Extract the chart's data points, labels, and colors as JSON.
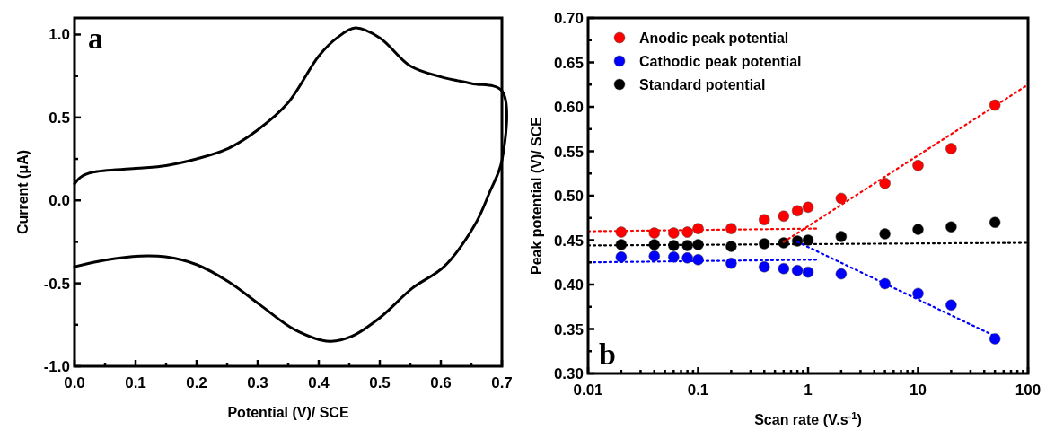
{
  "chart_data": [
    {
      "type": "line",
      "xlabel": "Potential (V)/ SCE",
      "ylabel": "Current (μA)",
      "annotations": [
        "a"
      ],
      "xlim": [
        0,
        0.7
      ],
      "ylim": [
        -1.0,
        1.1
      ],
      "xticks": [
        {
          "value": 0,
          "label": "0.0"
        },
        {
          "value": 0.05,
          "label": null
        },
        {
          "value": 0.1,
          "label": "0.1"
        },
        {
          "value": 0.15,
          "label": null
        },
        {
          "value": 0.2,
          "label": "0.2"
        },
        {
          "value": 0.25,
          "label": null
        },
        {
          "value": 0.3,
          "label": "0.3"
        },
        {
          "value": 0.35,
          "label": null
        },
        {
          "value": 0.4,
          "label": "0.4"
        },
        {
          "value": 0.45,
          "label": null
        },
        {
          "value": 0.5,
          "label": "0.5"
        },
        {
          "value": 0.55,
          "label": null
        },
        {
          "value": 0.6,
          "label": "0.6"
        },
        {
          "value": 0.65,
          "label": null
        },
        {
          "value": 0.7,
          "label": "0.7"
        }
      ],
      "yticks": [
        {
          "value": -1.0,
          "label": "-1.0"
        },
        {
          "value": -0.75,
          "label": null
        },
        {
          "value": -0.5,
          "label": "-0.5"
        },
        {
          "value": -0.25,
          "label": null
        },
        {
          "value": 0,
          "label": "0.0"
        },
        {
          "value": 0.25,
          "label": null
        },
        {
          "value": 0.5,
          "label": "0.5"
        },
        {
          "value": 0.75,
          "label": null
        },
        {
          "value": 1.0,
          "label": "1.0"
        }
      ],
      "grid": false,
      "legend": false,
      "line_style": "solid",
      "series": [
        {
          "color": "#000000",
          "x": [
            0,
            0.01,
            0.03,
            0.1,
            0.15,
            0.2,
            0.25,
            0.3,
            0.35,
            0.4,
            0.43,
            0.46,
            0.5,
            0.55,
            0.6,
            0.65,
            0.7,
            0.7,
            0.68,
            0.656,
            0.605,
            0.553,
            0.501,
            0.454,
            0.418,
            0.361,
            0.304,
            0.252,
            0.2,
            0.149,
            0.107,
            0.05,
            0
          ],
          "values": [
            0.1,
            0.14,
            0.17,
            0.193,
            0.21,
            0.25,
            0.31,
            0.425,
            0.59,
            0.87,
            0.98,
            1.04,
            0.98,
            0.81,
            0.745,
            0.705,
            0.66,
            0.24,
            0.05,
            -0.145,
            -0.4,
            -0.53,
            -0.705,
            -0.82,
            -0.85,
            -0.78,
            -0.63,
            -0.49,
            -0.387,
            -0.34,
            -0.335,
            -0.36,
            -0.4
          ]
        }
      ]
    },
    {
      "type": "scatter",
      "xlabel": "Scan rate (V.s$^{-1}$)",
      "ylabel": "Peak potential (V)/ SCE",
      "annotations": [
        "b"
      ],
      "log": "x",
      "xlim": [
        0.01,
        100
      ],
      "ylim": [
        0.3,
        0.7
      ],
      "xticks": [
        0.01,
        {
          "value": 0.02,
          "label": null
        },
        {
          "value": 0.03,
          "label": null
        },
        {
          "value": 0.04,
          "label": null
        },
        {
          "value": 0.05,
          "label": null
        },
        {
          "value": 0.06,
          "label": null
        },
        {
          "value": 0.07,
          "label": null
        },
        {
          "value": 0.08,
          "label": null
        },
        {
          "value": 0.09,
          "label": null
        },
        0.1,
        {
          "value": 0.2,
          "label": null
        },
        {
          "value": 0.3,
          "label": null
        },
        {
          "value": 0.4,
          "label": null
        },
        {
          "value": 0.5,
          "label": null
        },
        {
          "value": 0.6,
          "label": null
        },
        {
          "value": 0.7,
          "label": null
        },
        {
          "value": 0.8,
          "label": null
        },
        {
          "value": 0.9,
          "label": null
        },
        1,
        {
          "value": 2,
          "label": null
        },
        {
          "value": 3,
          "label": null
        },
        {
          "value": 4,
          "label": null
        },
        {
          "value": 5,
          "label": null
        },
        {
          "value": 6,
          "label": null
        },
        {
          "value": 7,
          "label": null
        },
        {
          "value": 8,
          "label": null
        },
        {
          "value": 9,
          "label": null
        },
        10,
        {
          "value": 20,
          "label": null
        },
        {
          "value": 30,
          "label": null
        },
        {
          "value": 40,
          "label": null
        },
        {
          "value": 50,
          "label": null
        },
        {
          "value": 60,
          "label": null
        },
        {
          "value": 70,
          "label": null
        },
        {
          "value": 80,
          "label": null
        },
        {
          "value": 90,
          "label": null
        },
        100
      ],
      "yticks": [
        {
          "value": 0.3,
          "label": "0.30"
        },
        {
          "value": 0.325,
          "label": null
        },
        {
          "value": 0.35,
          "label": "0.35"
        },
        {
          "value": 0.375,
          "label": null
        },
        {
          "value": 0.4,
          "label": "0.40"
        },
        {
          "value": 0.425,
          "label": null
        },
        {
          "value": 0.45,
          "label": "0.45"
        },
        {
          "value": 0.475,
          "label": null
        },
        {
          "value": 0.5,
          "label": "0.50"
        },
        {
          "value": 0.525,
          "label": null
        },
        {
          "value": 0.55,
          "label": "0.55"
        },
        {
          "value": 0.575,
          "label": null
        },
        {
          "value": 0.6,
          "label": "0.60"
        },
        {
          "value": 0.625,
          "label": null
        },
        {
          "value": 0.65,
          "label": "0.65"
        },
        {
          "value": 0.675,
          "label": null
        },
        {
          "value": 0.7,
          "label": "0.70"
        }
      ],
      "grid": false,
      "legend": "top left",
      "marker": "circle",
      "x": [
        0.02,
        0.04,
        0.06,
        0.08,
        0.1,
        0.2,
        0.4,
        0.6,
        0.8,
        1,
        2,
        5,
        10,
        20,
        50
      ],
      "series": [
        {
          "name": "Anodic peak potential",
          "color": "#ff0000",
          "values": [
            0.459,
            0.458,
            0.458,
            0.459,
            0.463,
            0.463,
            0.473,
            0.477,
            0.483,
            0.487,
            0.497,
            0.514,
            0.534,
            0.553,
            0.602
          ]
        },
        {
          "name": "Cathodic peak potential",
          "color": "#0000ff",
          "values": [
            0.431,
            0.432,
            0.431,
            0.43,
            0.428,
            0.424,
            0.42,
            0.418,
            0.416,
            0.414,
            0.412,
            0.401,
            0.39,
            0.377,
            0.339
          ]
        },
        {
          "name": "Standard potential",
          "color": "#000000",
          "values": [
            0.445,
            0.445,
            0.444,
            0.444,
            0.445,
            0.443,
            0.446,
            0.447,
            0.449,
            0.45,
            0.454,
            0.457,
            0.462,
            0.465,
            0.47
          ]
        },
        {
          "type": "line",
          "line_style": "dotted",
          "marker": "none",
          "color": "#ff0000",
          "x": [
            0.01,
            1.2
          ],
          "values": [
            0.46,
            0.463
          ]
        },
        {
          "type": "line",
          "line_style": "dotted",
          "marker": "none",
          "color": "#ff0000",
          "x": [
            0.6,
            100
          ],
          "values": [
            0.448,
            0.625
          ]
        },
        {
          "type": "line",
          "line_style": "dotted",
          "marker": "none",
          "color": "#000000",
          "x": [
            0.01,
            100
          ],
          "values": [
            0.444,
            0.447
          ]
        },
        {
          "type": "line",
          "line_style": "dotted",
          "marker": "none",
          "color": "#0000ff",
          "x": [
            0.01,
            1.2
          ],
          "values": [
            0.425,
            0.428
          ]
        },
        {
          "type": "line",
          "line_style": "dotted",
          "marker": "none",
          "color": "#0000ff",
          "x": [
            0.8,
            50
          ],
          "values": [
            0.448,
            0.342
          ]
        }
      ]
    }
  ]
}
